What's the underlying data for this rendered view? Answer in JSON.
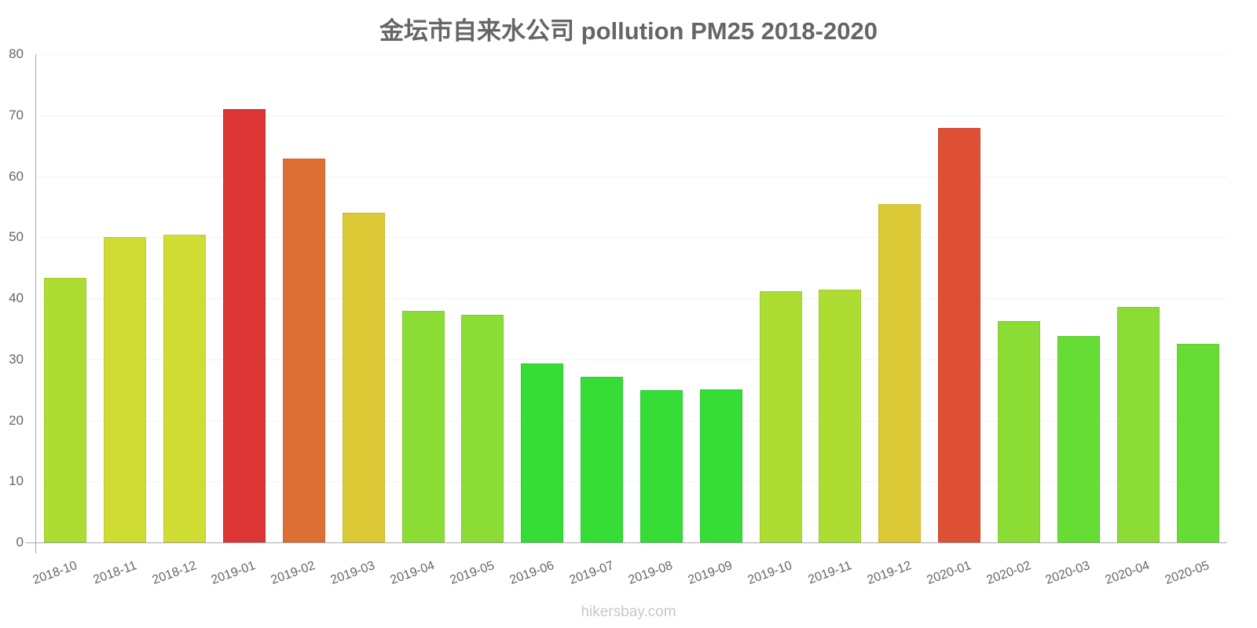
{
  "title": "金坛市自来水公司 pollution PM25 2018-2020",
  "footer": "hikersbay.com",
  "chart_data": {
    "type": "bar",
    "title": "金坛市自来水公司 pollution PM25 2018-2020",
    "xlabel": "",
    "ylabel": "",
    "ylim": [
      0,
      80
    ],
    "yticks": [
      0,
      10,
      20,
      30,
      40,
      50,
      60,
      70,
      80
    ],
    "grid": true,
    "legend": null,
    "categories": [
      "2018-10",
      "2018-11",
      "2018-12",
      "2019-01",
      "2019-02",
      "2019-03",
      "2019-04",
      "2019-05",
      "2019-06",
      "2019-07",
      "2019-08",
      "2019-09",
      "2019-10",
      "2019-11",
      "2019-12",
      "2020-01",
      "2020-02",
      "2020-03",
      "2020-04",
      "2020-05"
    ],
    "values": [
      43.3,
      50.0,
      50.4,
      71.0,
      62.9,
      54.0,
      37.9,
      37.3,
      29.3,
      27.1,
      25.0,
      25.1,
      41.2,
      41.4,
      55.4,
      67.9,
      36.3,
      33.8,
      38.6,
      32.5
    ],
    "colors": [
      "#addd33",
      "#cedc34",
      "#d0dd34",
      "#db3535",
      "#dd6f35",
      "#dbc935",
      "#8bdd36",
      "#8bdd36",
      "#35dd36",
      "#35dd36",
      "#35dd36",
      "#35dd36",
      "#addd33",
      "#addd33",
      "#dbc935",
      "#dd5035",
      "#8bdd36",
      "#66dd35",
      "#8bdd36",
      "#66dd35"
    ]
  }
}
